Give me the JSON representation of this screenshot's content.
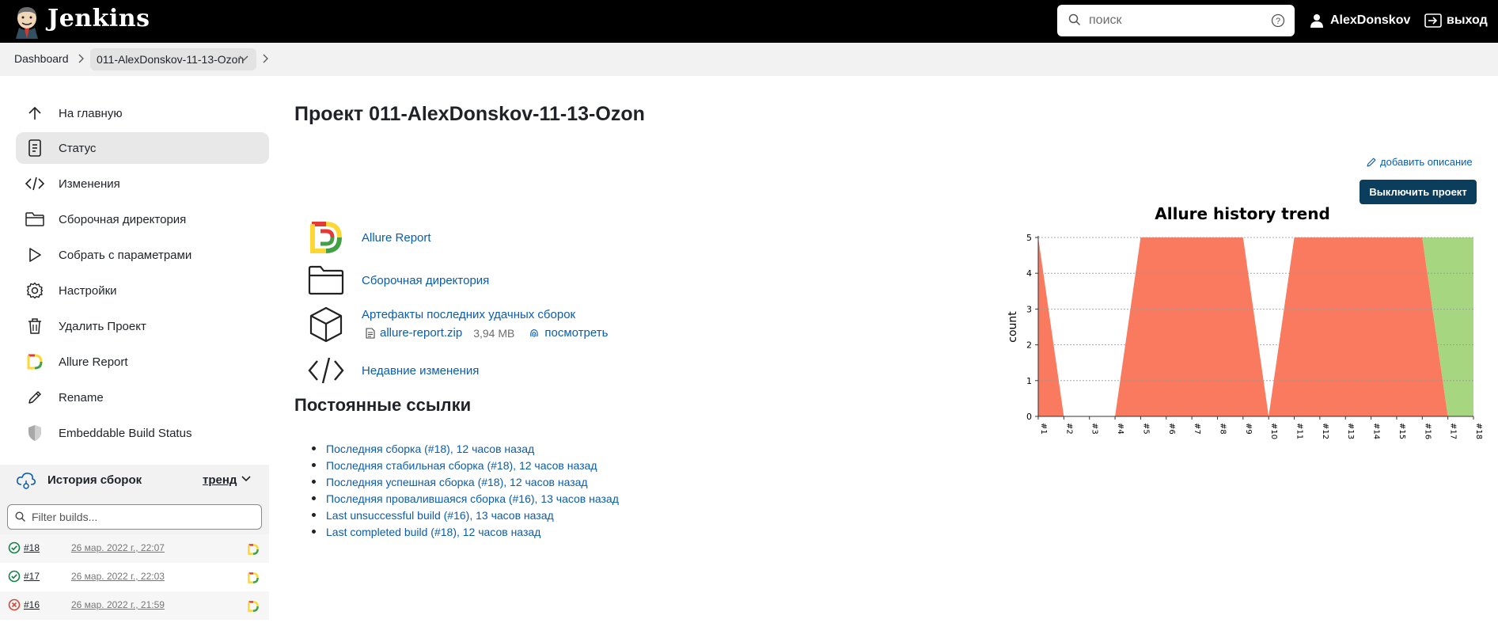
{
  "header": {
    "brand": "Jenkins",
    "search_placeholder": "поиск",
    "user": "AlexDonskov",
    "logout": "выход"
  },
  "breadcrumbs": {
    "items": [
      "Dashboard",
      "011-AlexDonskov-11-13-Ozon"
    ]
  },
  "sidebar": {
    "items": [
      {
        "label": "На главную",
        "icon": "arrow-up-icon"
      },
      {
        "label": "Статус",
        "icon": "document-icon",
        "active": true
      },
      {
        "label": "Изменения",
        "icon": "code-icon"
      },
      {
        "label": "Сборочная директория",
        "icon": "folder-icon"
      },
      {
        "label": "Собрать с параметрами",
        "icon": "play-icon"
      },
      {
        "label": "Настройки",
        "icon": "gear-icon"
      },
      {
        "label": "Удалить Проект",
        "icon": "trash-icon"
      },
      {
        "label": "Allure Report",
        "icon": "allure-icon"
      },
      {
        "label": "Rename",
        "icon": "pencil-icon"
      },
      {
        "label": "Embeddable Build Status",
        "icon": "shield-icon"
      }
    ]
  },
  "build_history": {
    "title": "История сборок",
    "trend": "тренд",
    "filter_placeholder": "Filter builds...",
    "builds": [
      {
        "number": "#18",
        "date": "26 мар. 2022 г., 22:07",
        "status": "success"
      },
      {
        "number": "#17",
        "date": "26 мар. 2022 г., 22:03",
        "status": "success"
      },
      {
        "number": "#16",
        "date": "26 мар. 2022 г., 21:59",
        "status": "failed"
      }
    ]
  },
  "main": {
    "title": "Проект 011-AlexDonskov-11-13-Ozon",
    "add_description": "добавить описание",
    "disable_button": "Выключить проект",
    "links": {
      "allure": "Allure Report",
      "workspace": "Сборочная директория",
      "artifacts": "Артефакты последних удачных сборок",
      "artifact_file": "allure-report.zip",
      "artifact_size": "3,94 MB",
      "artifact_view": "посмотреть",
      "changes": "Недавние изменения"
    },
    "permalinks_title": "Постоянные ссылки",
    "permalinks": [
      "Последняя сборка (#18), 12 часов назад",
      "Последняя стабильная сборка (#18), 12 часов назад",
      "Последняя успешная сборка (#18), 12 часов назад",
      "Последняя провалившаяся сборка (#16), 13 часов назад",
      "Last unsuccessful build (#16), 13 часов назад",
      "Last completed build (#18), 12 часов назад"
    ]
  },
  "colors": {
    "failed": "#fa7a5f",
    "passed": "#a6d67f",
    "link": "#0b5cad",
    "button": "#0b3d5c"
  },
  "chart_data": {
    "type": "area",
    "title": "Allure history trend",
    "ylabel": "count",
    "xlabel": "",
    "x": [
      "#1",
      "#2",
      "#3",
      "#4",
      "#5",
      "#6",
      "#7",
      "#8",
      "#9",
      "#10",
      "#11",
      "#12",
      "#13",
      "#14",
      "#15",
      "#16",
      "#17",
      "#18"
    ],
    "ylim": [
      0,
      5
    ],
    "yticks": [
      0,
      1,
      2,
      3,
      4,
      5
    ],
    "series": [
      {
        "name": "failed",
        "values": [
          5,
          0,
          0,
          0,
          5,
          5,
          5,
          5,
          5,
          0,
          5,
          5,
          5,
          5,
          5,
          5,
          0,
          0
        ]
      },
      {
        "name": "passed",
        "values": [
          0,
          0,
          0,
          0,
          0,
          0,
          0,
          0,
          0,
          0,
          0,
          0,
          0,
          0,
          0,
          0,
          5,
          5
        ]
      }
    ],
    "grid": true,
    "legend": "none"
  }
}
